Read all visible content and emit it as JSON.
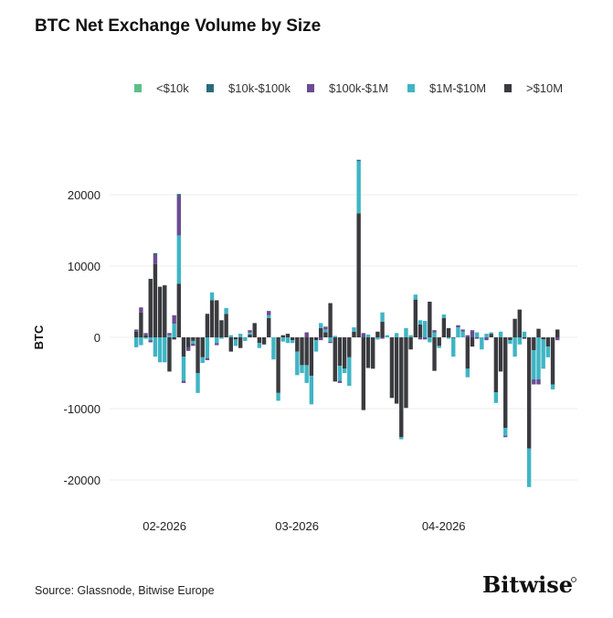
{
  "chart_data": {
    "type": "bar",
    "stacked": true,
    "title": "BTC Net Exchange Volume by Size",
    "ylabel": "BTC",
    "xlabel": "",
    "ylim": [
      -22000,
      26000
    ],
    "yticks": [
      20000,
      10000,
      0,
      -10000,
      -20000
    ],
    "ytick_labels": [
      "20000",
      "10000",
      "0",
      "-10000",
      "-20000"
    ],
    "xtick_labels": [
      {
        "label": "02-2026",
        "date": "2026-02-01"
      },
      {
        "label": "03-2026",
        "date": "2026-03-01"
      },
      {
        "label": "04-2026",
        "date": "2026-04-01"
      }
    ],
    "grid": true,
    "legend_position": "top",
    "dates": [
      "2026-01-26",
      "2026-01-27",
      "2026-01-28",
      "2026-01-29",
      "2026-01-30",
      "2026-01-31",
      "2026-02-01",
      "2026-02-02",
      "2026-02-03",
      "2026-02-04",
      "2026-02-05",
      "2026-02-06",
      "2026-02-07",
      "2026-02-08",
      "2026-02-09",
      "2026-02-10",
      "2026-02-11",
      "2026-02-12",
      "2026-02-13",
      "2026-02-14",
      "2026-02-15",
      "2026-02-16",
      "2026-02-17",
      "2026-02-18",
      "2026-02-19",
      "2026-02-20",
      "2026-02-21",
      "2026-02-22",
      "2026-02-23",
      "2026-02-24",
      "2026-02-25",
      "2026-02-26",
      "2026-02-27",
      "2026-02-28",
      "2026-03-01",
      "2026-03-02",
      "2026-03-03",
      "2026-03-04",
      "2026-03-05",
      "2026-03-06",
      "2026-03-07",
      "2026-03-08",
      "2026-03-09",
      "2026-03-10",
      "2026-03-11",
      "2026-03-12",
      "2026-03-13",
      "2026-03-14",
      "2026-03-15",
      "2026-03-16",
      "2026-03-17",
      "2026-03-18",
      "2026-03-19",
      "2026-03-20",
      "2026-03-21",
      "2026-03-22",
      "2026-03-23",
      "2026-03-24",
      "2026-03-25",
      "2026-03-26",
      "2026-03-27",
      "2026-03-28",
      "2026-03-29",
      "2026-03-30",
      "2026-03-31",
      "2026-04-01",
      "2026-04-02",
      "2026-04-03",
      "2026-04-04",
      "2026-04-05",
      "2026-04-06",
      "2026-04-07",
      "2026-04-08",
      "2026-04-09",
      "2026-04-10",
      "2026-04-11",
      "2026-04-12",
      "2026-04-13",
      "2026-04-14",
      "2026-04-15",
      "2026-04-16",
      "2026-04-17",
      "2026-04-18",
      "2026-04-19",
      "2026-04-20",
      "2026-04-21",
      "2026-04-22",
      "2026-04-23",
      "2026-04-24",
      "2026-04-25"
    ],
    "series": [
      {
        "name": "<$10k",
        "color": "#5cbf8a",
        "values": [
          0,
          0,
          0,
          0,
          0,
          0,
          0,
          0,
          0,
          0,
          0,
          0,
          0,
          0,
          0,
          0,
          0,
          0,
          0,
          0,
          0,
          0,
          0,
          0,
          0,
          0,
          0,
          0,
          0,
          0,
          0,
          0,
          0,
          0,
          0,
          0,
          0,
          0,
          0,
          0,
          0,
          0,
          0,
          0,
          0,
          0,
          0,
          0,
          0,
          0,
          0,
          0,
          0,
          0,
          0,
          0,
          0,
          0,
          0,
          0,
          0,
          0,
          0,
          0,
          0,
          0,
          0,
          0,
          0,
          0,
          0,
          0,
          0,
          0,
          0,
          0,
          0,
          0,
          0,
          0,
          0,
          0,
          0,
          0,
          0,
          0,
          0,
          0,
          0,
          0
        ]
      },
      {
        "name": "$10k-$100k",
        "color": "#2a6b7c",
        "values": [
          0,
          0,
          0,
          0,
          200,
          0,
          0,
          0,
          0,
          300,
          0,
          0,
          0,
          0,
          0,
          0,
          0,
          0,
          0,
          0,
          0,
          0,
          0,
          0,
          0,
          0,
          0,
          0,
          0,
          0,
          0,
          0,
          0,
          0,
          0,
          0,
          0,
          0,
          0,
          0,
          0,
          0,
          0,
          0,
          0,
          0,
          0,
          200,
          0,
          0,
          0,
          0,
          0,
          0,
          0,
          0,
          0,
          0,
          0,
          0,
          0,
          0,
          0,
          0,
          0,
          0,
          0,
          0,
          0,
          0,
          0,
          0,
          0,
          0,
          0,
          0,
          0,
          0,
          0,
          0,
          0,
          0,
          0,
          0,
          0,
          0,
          0,
          0,
          0,
          0
        ]
      },
      {
        "name": "$100k-$1M",
        "color": "#6a4c93",
        "values": [
          300,
          700,
          300,
          -300,
          1300,
          0,
          0,
          300,
          1200,
          5500,
          -300,
          -500,
          -300,
          0,
          0,
          -300,
          0,
          -300,
          0,
          0,
          0,
          0,
          0,
          0,
          300,
          0,
          0,
          0,
          600,
          0,
          0,
          0,
          0,
          0,
          0,
          0,
          700,
          0,
          0,
          -400,
          400,
          -200,
          0,
          -300,
          0,
          0,
          0,
          0,
          600,
          0,
          0,
          0,
          -200,
          0,
          0,
          0,
          0,
          0,
          0,
          0,
          -300,
          -300,
          0,
          300,
          0,
          0,
          0,
          0,
          300,
          300,
          300,
          1000,
          -200,
          0,
          -400,
          0,
          0,
          0,
          -200,
          0,
          0,
          0,
          0,
          0,
          -700,
          -700,
          0,
          0,
          0,
          -400
        ]
      },
      {
        "name": "$1M-$10M",
        "color": "#3fb5c4",
        "values": [
          -1400,
          -1100,
          -200,
          -400,
          -2700,
          -3500,
          -3500,
          300,
          1900,
          6800,
          -3400,
          0,
          -400,
          -2800,
          -800,
          -2900,
          1100,
          -800,
          -200,
          800,
          300,
          -900,
          500,
          -500,
          300,
          0,
          -700,
          0,
          400,
          -3100,
          -1100,
          -600,
          -800,
          -400,
          -3300,
          -1100,
          -2500,
          -4000,
          -1600,
          700,
          400,
          -600,
          200,
          -2100,
          -600,
          -4000,
          600,
          7300,
          0,
          400,
          0,
          -300,
          1300,
          300,
          0,
          600,
          -300,
          1300,
          300,
          700,
          600,
          2300,
          -700,
          700,
          -300,
          500,
          -200,
          -2600,
          1400,
          800,
          -1200,
          0,
          700,
          -1700,
          500,
          200,
          -1500,
          800,
          -1100,
          -500,
          -2700,
          -1000,
          800,
          -5400,
          -4100,
          -5900,
          -4100,
          -1500,
          -700,
          0
        ]
      },
      {
        "name": ">$10M",
        "color": "#3a3b3f",
        "values": [
          800,
          3500,
          300,
          8200,
          10300,
          7100,
          7300,
          -4800,
          -300,
          7500,
          -2700,
          -1400,
          -500,
          -5000,
          -2800,
          3300,
          5200,
          5200,
          2400,
          3300,
          -2000,
          -300,
          -1500,
          0,
          400,
          2000,
          -800,
          -1000,
          2700,
          0,
          -7800,
          300,
          500,
          -400,
          -2000,
          -3900,
          -3900,
          -5400,
          -400,
          1300,
          700,
          4800,
          -6200,
          -4000,
          -4400,
          -2800,
          800,
          17400,
          -10200,
          -4300,
          -4400,
          800,
          2200,
          0,
          -8500,
          -9300,
          -14000,
          -9900,
          -1700,
          5300,
          1800,
          0,
          5000,
          -4700,
          -1200,
          2700,
          1300,
          -100,
          0,
          0,
          -4400,
          -1300,
          0,
          0,
          0,
          500,
          -7700,
          -4800,
          -12700,
          -400,
          2600,
          3900,
          -200,
          -15600,
          -1800,
          1200,
          -300,
          -1300,
          -6600,
          1100
        ]
      }
    ]
  },
  "footer": {
    "source": "Source: Glassnode, Bitwise Europe",
    "logo_text": "Bitwise"
  }
}
